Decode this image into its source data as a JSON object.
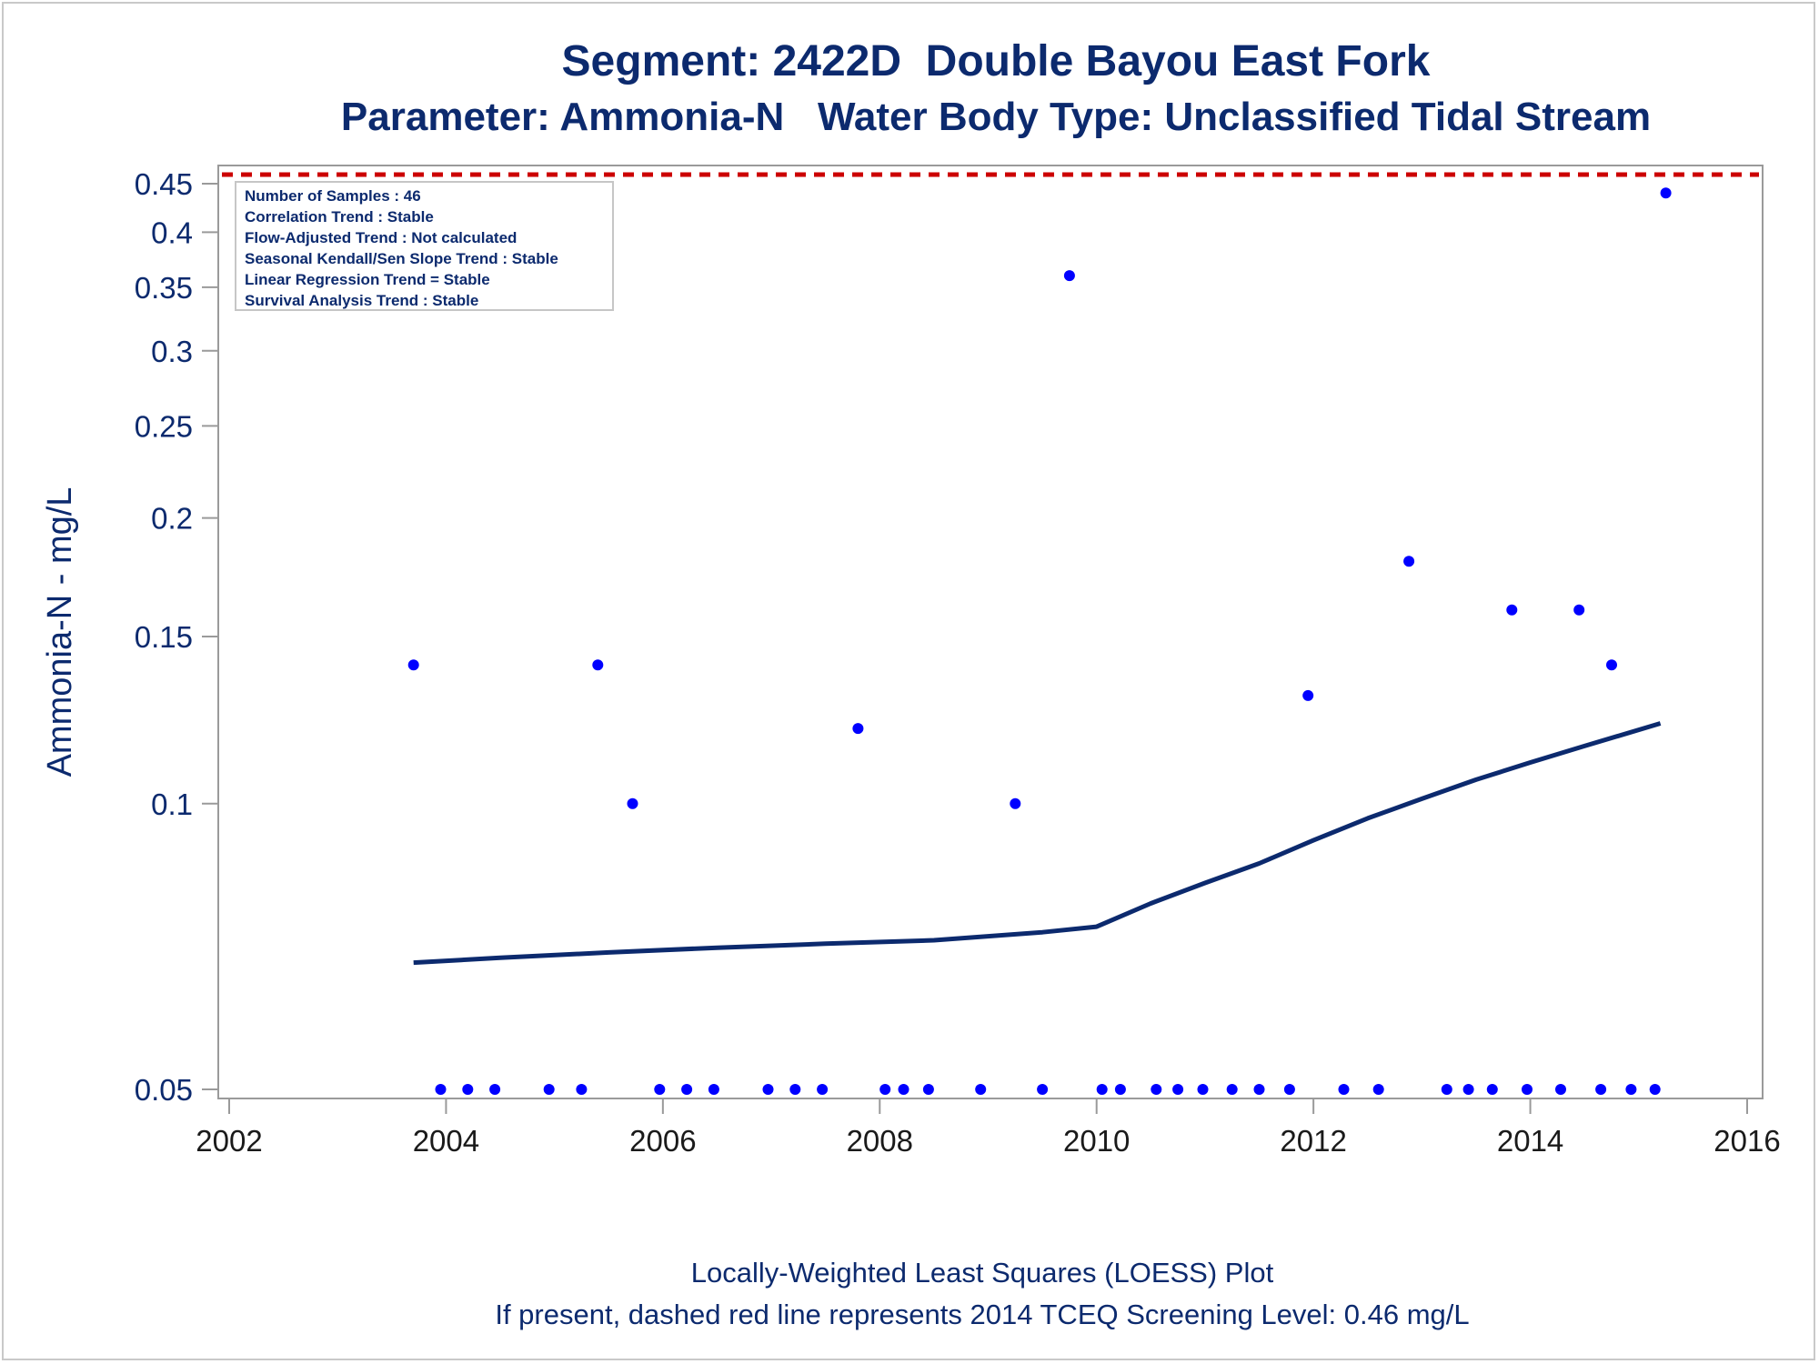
{
  "colors": {
    "title": "#0c2a6e",
    "points": "#0000ff",
    "loess": "#0c2a6e",
    "screening_line": "#cc0000",
    "frame": "#9a9a9a"
  },
  "chart_data": {
    "type": "scatter",
    "title": "Segment: 2422D  Double Bayou East Fork",
    "subtitle": "Parameter: Ammonia-N   Water Body Type: Unclassified Tidal Stream",
    "xlabel": "",
    "ylabel": "Ammonia-N - mg/L",
    "y_scale": "log",
    "xlim": [
      2002,
      2016
    ],
    "ylim": [
      0.05,
      0.46
    ],
    "x_ticks": [
      2002,
      2004,
      2006,
      2008,
      2010,
      2012,
      2014,
      2016
    ],
    "y_ticks": [
      0.05,
      0.1,
      0.15,
      0.2,
      0.25,
      0.3,
      0.35,
      0.4,
      0.45
    ],
    "y_tick_labels": [
      "0.05",
      "0.1",
      "0.15",
      "0.2",
      "0.25",
      "0.3",
      "0.35",
      "0.4",
      "0.45"
    ],
    "grid": false,
    "series": [
      {
        "type": "scatter",
        "x": [
          2003.7,
          2003.95,
          2004.2,
          2004.45,
          2004.95,
          2005.25,
          2005.4,
          2005.72,
          2005.97,
          2006.22,
          2006.47,
          2006.97,
          2007.22,
          2007.47,
          2007.8,
          2008.05,
          2008.22,
          2008.45,
          2008.93,
          2009.25,
          2009.5,
          2009.75,
          2010.05,
          2010.22,
          2010.55,
          2010.75,
          2010.98,
          2011.25,
          2011.5,
          2011.78,
          2011.95,
          2012.28,
          2012.6,
          2012.88,
          2013.23,
          2013.43,
          2013.65,
          2013.83,
          2013.97,
          2014.28,
          2014.45,
          2014.65,
          2014.75,
          2014.93,
          2015.15,
          2015.25
        ],
        "y": [
          0.14,
          0.05,
          0.05,
          0.05,
          0.05,
          0.05,
          0.14,
          0.1,
          0.05,
          0.05,
          0.05,
          0.05,
          0.05,
          0.05,
          0.12,
          0.05,
          0.05,
          0.05,
          0.05,
          0.1,
          0.05,
          0.36,
          0.05,
          0.05,
          0.05,
          0.05,
          0.05,
          0.05,
          0.05,
          0.05,
          0.13,
          0.05,
          0.05,
          0.18,
          0.05,
          0.05,
          0.05,
          0.16,
          0.05,
          0.05,
          0.16,
          0.05,
          0.14,
          0.05,
          0.05,
          0.44
        ]
      },
      {
        "type": "line",
        "x": [
          2003.7,
          2004.5,
          2005.5,
          2006.5,
          2007.5,
          2008.5,
          2009.5,
          2010.0,
          2010.5,
          2011.0,
          2011.5,
          2012.0,
          2012.5,
          2013.0,
          2013.5,
          2014.0,
          2014.5,
          2015.2
        ],
        "y": [
          0.068,
          0.0688,
          0.0697,
          0.0705,
          0.0712,
          0.0718,
          0.0732,
          0.0742,
          0.0785,
          0.0825,
          0.0865,
          0.0915,
          0.0965,
          0.1012,
          0.106,
          0.1105,
          0.115,
          0.1215
        ]
      }
    ],
    "reference_line": {
      "y": 0.46,
      "style": "dashed"
    },
    "stats_box": [
      "Number of Samples : 46",
      "Correlation Trend : Stable",
      "Flow-Adjusted Trend : Not calculated",
      "Seasonal Kendall/Sen Slope Trend : Stable",
      "Linear Regression Trend = Stable",
      "Survival Analysis Trend : Stable"
    ],
    "stats_box_position": "top-left",
    "footer": [
      "Locally-Weighted Least Squares (LOESS) Plot",
      "If present, dashed red line represents 2014 TCEQ Screening Level: 0.46 mg/L"
    ]
  }
}
